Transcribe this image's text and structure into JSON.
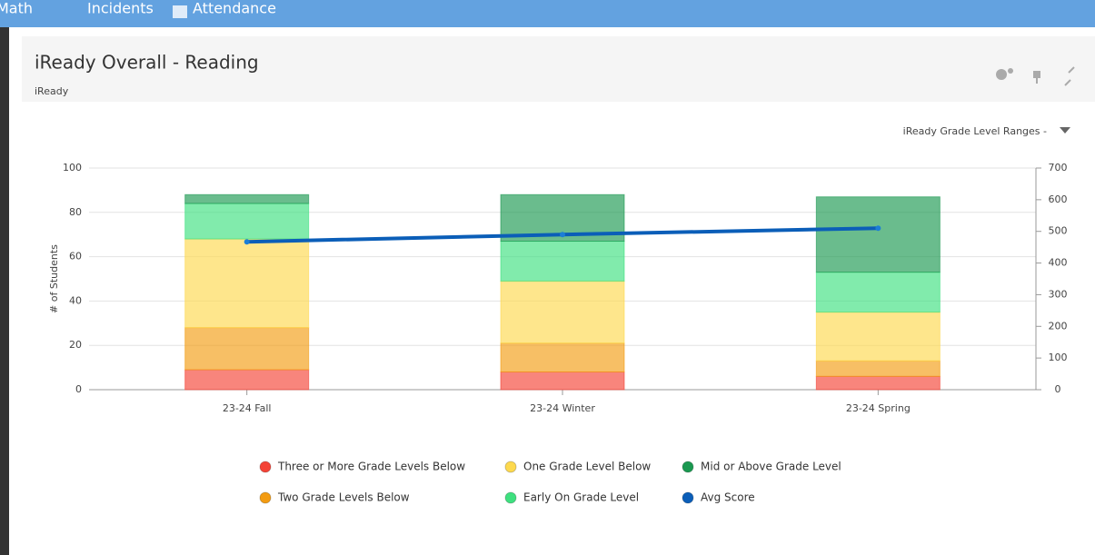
{
  "nav": [
    "Math",
    "Incidents",
    "Attendance"
  ],
  "panel": {
    "title": "iReady Overall - Reading",
    "subtitle": "iReady",
    "dropdown": "iReady Grade Level Ranges -"
  },
  "chart_data": {
    "type": "bar",
    "stacked": true,
    "categories": [
      "23-24 Fall",
      "23-24 Winter",
      "23-24 Spring"
    ],
    "ylabel": "# of Students",
    "ylim": [
      0,
      100
    ],
    "yticks": [
      0,
      20,
      40,
      60,
      80,
      100
    ],
    "y2lim": [
      0,
      700
    ],
    "y2ticks": [
      0,
      100,
      200,
      300,
      400,
      500,
      600,
      700
    ],
    "grid": true,
    "legend": "bottom",
    "series": [
      {
        "name": "Three or More Grade Levels Below",
        "color": "#f44336",
        "values": [
          9,
          8,
          6
        ]
      },
      {
        "name": "Two Grade Levels Below",
        "color": "#f39c12",
        "values": [
          19,
          13,
          7
        ]
      },
      {
        "name": "One Grade Level Below",
        "color": "#fdd94e",
        "values": [
          40,
          28,
          22
        ]
      },
      {
        "name": "Early On Grade Level",
        "color": "#3ee07f",
        "values": [
          16,
          18,
          18
        ]
      },
      {
        "name": "Mid or Above Grade Level",
        "color": "#1a9850",
        "values": [
          4,
          21,
          34
        ]
      },
      {
        "name": "Avg Score",
        "color": "#0b5eb8",
        "type": "line",
        "axis": "y2",
        "values": [
          467,
          490,
          510
        ]
      }
    ]
  }
}
